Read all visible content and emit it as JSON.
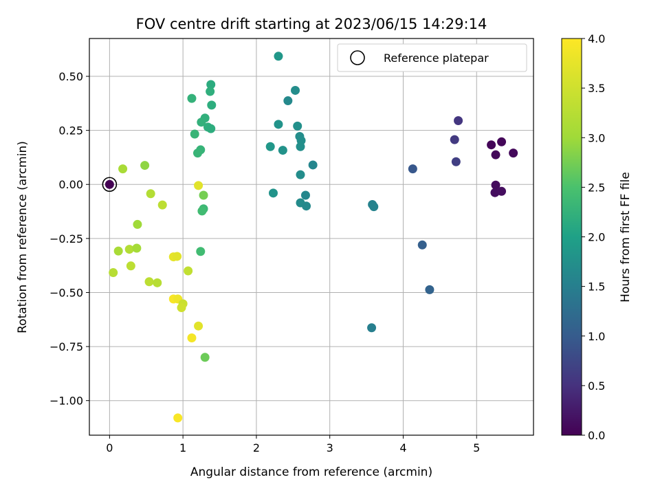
{
  "chart_data": {
    "type": "scatter",
    "title": "FOV centre drift starting at 2023/06/15 14:29:14",
    "xlabel": "Angular distance from reference (arcmin)",
    "ylabel": "Rotation from reference (arcmin)",
    "xlim": [
      -0.275,
      5.775
    ],
    "ylim": [
      -1.16,
      0.675
    ],
    "xticks": [
      0,
      1,
      2,
      3,
      4,
      5
    ],
    "xtick_labels": [
      "0",
      "1",
      "2",
      "3",
      "4",
      "5"
    ],
    "yticks": [
      -1.0,
      -0.75,
      -0.5,
      -0.25,
      0.0,
      0.25,
      0.5
    ],
    "ytick_labels": [
      "−1.00",
      "−0.75",
      "−0.50",
      "−0.25",
      "0.00",
      "0.25",
      "0.50"
    ],
    "grid": true,
    "colormap": "viridis",
    "colorbar": {
      "label": "Hours from first FF file",
      "range": [
        0.0,
        4.0
      ],
      "ticks": [
        0.0,
        0.5,
        1.0,
        1.5,
        2.0,
        2.5,
        3.0,
        3.5,
        4.0
      ],
      "tick_labels": [
        "0.0",
        "0.5",
        "1.0",
        "1.5",
        "2.0",
        "2.5",
        "3.0",
        "3.5",
        "4.0"
      ]
    },
    "legend": {
      "placement": "top-right",
      "entries": [
        {
          "label": "Reference platepar",
          "marker": "open-circle"
        }
      ]
    },
    "reference_point": {
      "x": 0.0,
      "y": 0.0
    },
    "series": [
      {
        "points": [
          {
            "x": 0.0,
            "y": 0.0,
            "c": 0.0
          },
          {
            "x": 5.2,
            "y": 0.183,
            "c": 0.05
          },
          {
            "x": 5.34,
            "y": 0.197,
            "c": 0.06
          },
          {
            "x": 5.26,
            "y": 0.137,
            "c": 0.07
          },
          {
            "x": 5.5,
            "y": 0.145,
            "c": 0.08
          },
          {
            "x": 5.26,
            "y": -0.003,
            "c": 0.1
          },
          {
            "x": 5.25,
            "y": -0.038,
            "c": 0.12
          },
          {
            "x": 5.34,
            "y": -0.032,
            "c": 0.13
          },
          {
            "x": 4.75,
            "y": 0.295,
            "c": 0.55
          },
          {
            "x": 4.7,
            "y": 0.207,
            "c": 0.6
          },
          {
            "x": 4.72,
            "y": 0.105,
            "c": 0.65
          },
          {
            "x": 4.13,
            "y": 0.072,
            "c": 0.95
          },
          {
            "x": 4.26,
            "y": -0.28,
            "c": 1.05
          },
          {
            "x": 4.36,
            "y": -0.487,
            "c": 1.1
          },
          {
            "x": 3.57,
            "y": -0.663,
            "c": 1.5
          },
          {
            "x": 3.58,
            "y": -0.093,
            "c": 1.55
          },
          {
            "x": 3.6,
            "y": -0.103,
            "c": 1.56
          },
          {
            "x": 2.3,
            "y": 0.593,
            "c": 1.85
          },
          {
            "x": 2.53,
            "y": 0.435,
            "c": 1.7
          },
          {
            "x": 2.43,
            "y": 0.387,
            "c": 1.65
          },
          {
            "x": 2.3,
            "y": 0.278,
            "c": 1.8
          },
          {
            "x": 2.56,
            "y": 0.27,
            "c": 1.75
          },
          {
            "x": 2.59,
            "y": 0.222,
            "c": 1.7
          },
          {
            "x": 2.61,
            "y": 0.203,
            "c": 1.72
          },
          {
            "x": 2.19,
            "y": 0.175,
            "c": 1.85
          },
          {
            "x": 2.6,
            "y": 0.175,
            "c": 1.73
          },
          {
            "x": 2.36,
            "y": 0.158,
            "c": 1.78
          },
          {
            "x": 2.77,
            "y": 0.09,
            "c": 1.6
          },
          {
            "x": 2.6,
            "y": 0.045,
            "c": 1.7
          },
          {
            "x": 2.23,
            "y": -0.04,
            "c": 1.8
          },
          {
            "x": 2.67,
            "y": -0.05,
            "c": 1.62
          },
          {
            "x": 2.6,
            "y": -0.085,
            "c": 1.68
          },
          {
            "x": 2.68,
            "y": -0.1,
            "c": 1.64
          },
          {
            "x": 1.38,
            "y": 0.462,
            "c": 2.15
          },
          {
            "x": 1.37,
            "y": 0.43,
            "c": 2.2
          },
          {
            "x": 1.12,
            "y": 0.398,
            "c": 2.25
          },
          {
            "x": 1.39,
            "y": 0.367,
            "c": 2.18
          },
          {
            "x": 1.3,
            "y": 0.307,
            "c": 2.22
          },
          {
            "x": 1.25,
            "y": 0.288,
            "c": 2.24
          },
          {
            "x": 1.34,
            "y": 0.265,
            "c": 2.2
          },
          {
            "x": 1.38,
            "y": 0.258,
            "c": 2.17
          },
          {
            "x": 1.16,
            "y": 0.233,
            "c": 2.3
          },
          {
            "x": 1.24,
            "y": 0.16,
            "c": 2.28
          },
          {
            "x": 1.2,
            "y": 0.145,
            "c": 2.3
          },
          {
            "x": 1.28,
            "y": -0.05,
            "c": 2.75
          },
          {
            "x": 1.28,
            "y": -0.113,
            "c": 2.35
          },
          {
            "x": 1.26,
            "y": -0.123,
            "c": 2.4
          },
          {
            "x": 1.24,
            "y": -0.31,
            "c": 2.4
          },
          {
            "x": 1.3,
            "y": -0.8,
            "c": 2.7
          },
          {
            "x": 0.48,
            "y": 0.088,
            "c": 2.9
          },
          {
            "x": 0.18,
            "y": 0.072,
            "c": 3.1
          },
          {
            "x": 0.56,
            "y": -0.043,
            "c": 3.2
          },
          {
            "x": 0.72,
            "y": -0.095,
            "c": 3.3
          },
          {
            "x": 0.38,
            "y": -0.185,
            "c": 3.0
          },
          {
            "x": 0.12,
            "y": -0.308,
            "c": 3.1
          },
          {
            "x": 0.27,
            "y": -0.3,
            "c": 3.2
          },
          {
            "x": 0.37,
            "y": -0.295,
            "c": 3.05
          },
          {
            "x": 0.29,
            "y": -0.377,
            "c": 3.3
          },
          {
            "x": 0.05,
            "y": -0.408,
            "c": 3.25
          },
          {
            "x": 0.54,
            "y": -0.45,
            "c": 3.3
          },
          {
            "x": 0.65,
            "y": -0.455,
            "c": 3.25
          },
          {
            "x": 1.07,
            "y": -0.4,
            "c": 3.35
          },
          {
            "x": 1.21,
            "y": -0.005,
            "c": 3.7
          },
          {
            "x": 0.87,
            "y": -0.335,
            "c": 3.75
          },
          {
            "x": 0.92,
            "y": -0.333,
            "c": 3.7
          },
          {
            "x": 0.87,
            "y": -0.53,
            "c": 3.95
          },
          {
            "x": 0.93,
            "y": -0.53,
            "c": 3.85
          },
          {
            "x": 1.0,
            "y": -0.552,
            "c": 3.45
          },
          {
            "x": 0.98,
            "y": -0.57,
            "c": 3.5
          },
          {
            "x": 1.21,
            "y": -0.655,
            "c": 3.7
          },
          {
            "x": 1.12,
            "y": -0.71,
            "c": 3.9
          },
          {
            "x": 0.93,
            "y": -1.08,
            "c": 3.95
          }
        ]
      }
    ]
  }
}
